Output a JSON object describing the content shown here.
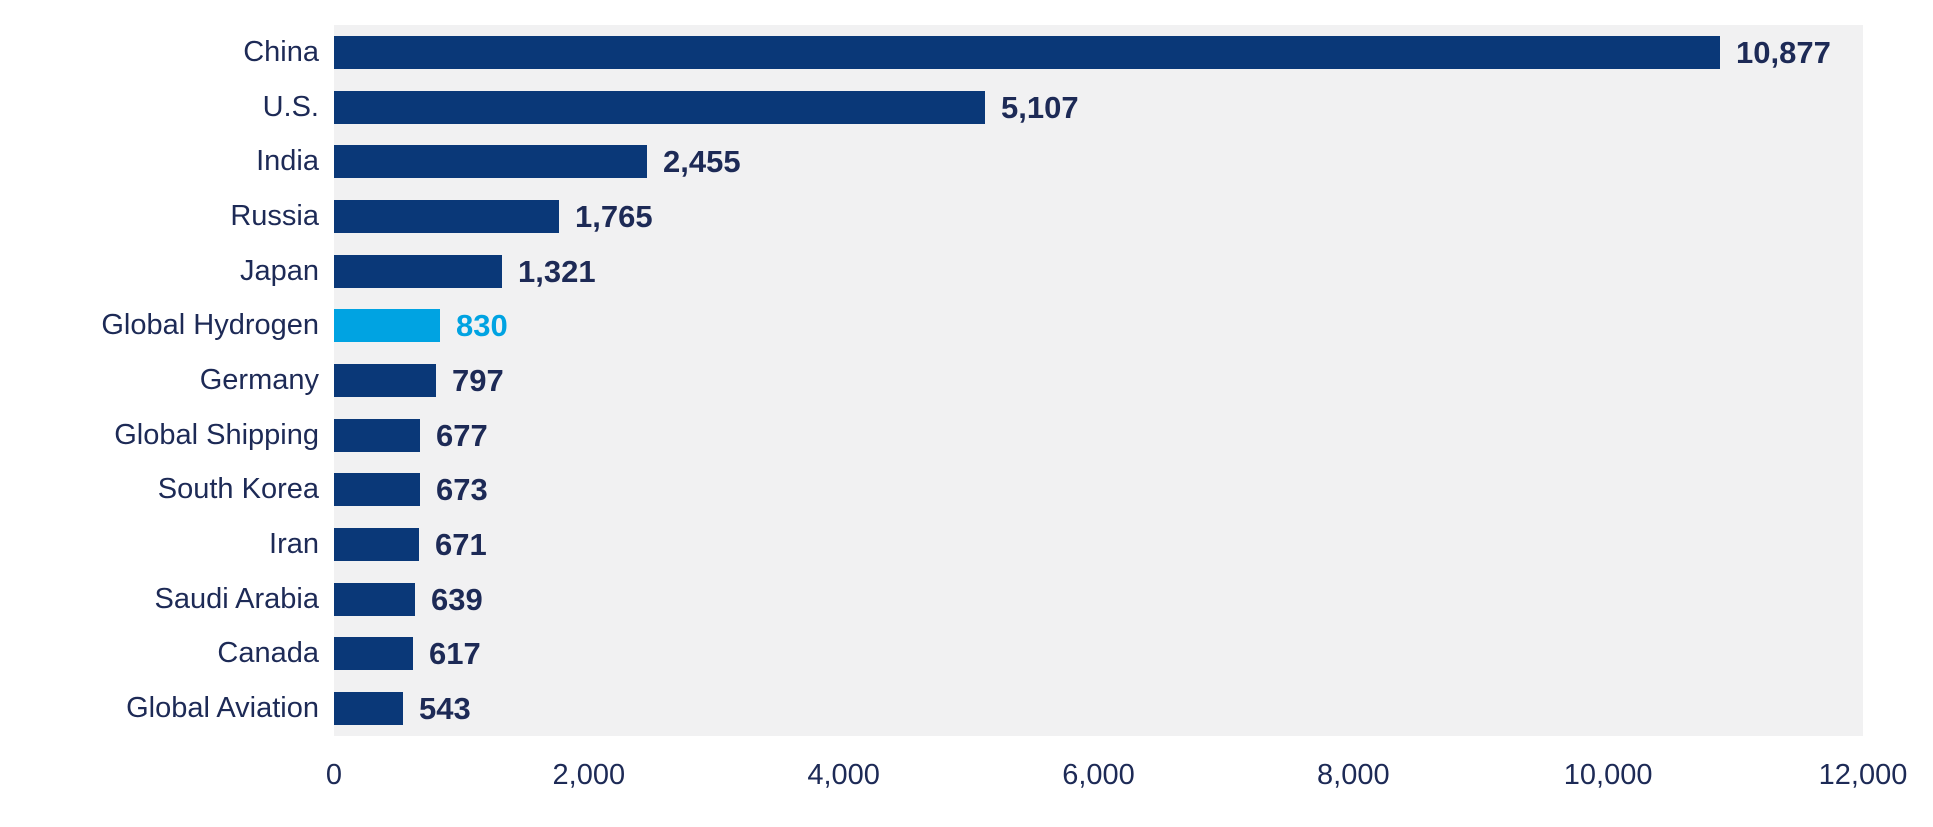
{
  "chart_data": {
    "type": "bar",
    "orientation": "horizontal",
    "title": "",
    "categories": [
      "China",
      "U.S.",
      "India",
      "Russia",
      "Japan",
      "Global Hydrogen",
      "Germany",
      "Global Shipping",
      "South Korea",
      "Iran",
      "Saudi Arabia",
      "Canada",
      "Global Aviation"
    ],
    "values": [
      10877,
      5107,
      2455,
      1765,
      1321,
      830,
      797,
      677,
      673,
      671,
      639,
      617,
      543
    ],
    "value_labels": [
      "10,877",
      "5,107",
      "2,455",
      "1,765",
      "1,321",
      "830",
      "797",
      "677",
      "673",
      "671",
      "639",
      "617",
      "543"
    ],
    "highlight_index": 5,
    "xlabel": "",
    "ylabel": "",
    "xlim": [
      0,
      12000
    ],
    "x_ticks": [
      0,
      2000,
      4000,
      6000,
      8000,
      10000,
      12000
    ],
    "x_tick_labels": [
      "0",
      "2,000",
      "4,000",
      "6,000",
      "8,000",
      "10,000",
      "12,000"
    ],
    "grid": false,
    "legend": false
  },
  "colors": {
    "bar": "#0a3878",
    "highlight_bar": "#00a3e2",
    "text": "#1d2a56",
    "highlight_text": "#00a3e2",
    "plot_background": "#f1f1f2",
    "page_background": "#ffffff"
  }
}
